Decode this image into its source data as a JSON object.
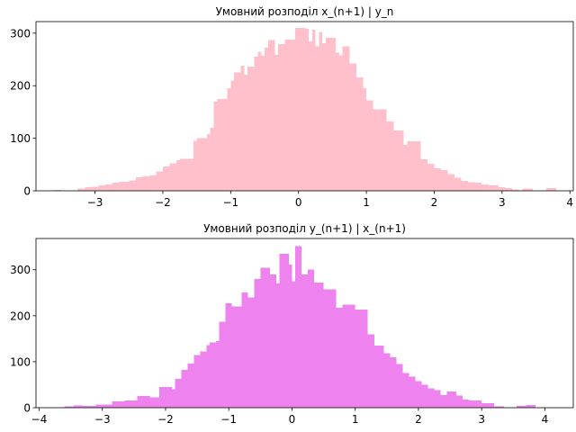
{
  "chart_data": [
    {
      "type": "bar",
      "title": "Умовний розподіл x_(n+1) | y_n",
      "color": "#ffc0cb",
      "xlim": [
        -3.87,
        4.05
      ],
      "ylim": [
        0,
        322
      ],
      "xticks": [
        -3,
        -2,
        -1,
        0,
        1,
        2,
        3,
        4
      ],
      "yticks": [
        0,
        100,
        200,
        300
      ],
      "bins": [
        {
          "x0": -3.6,
          "x1": -3.5,
          "count": 2
        },
        {
          "x0": -3.26,
          "x1": -3.15,
          "count": 4
        },
        {
          "x0": -3.15,
          "x1": -3.05,
          "count": 7
        },
        {
          "x0": -3.05,
          "x1": -2.95,
          "count": 8
        },
        {
          "x0": -2.95,
          "x1": -2.85,
          "count": 10
        },
        {
          "x0": -2.85,
          "x1": -2.75,
          "count": 12
        },
        {
          "x0": -2.75,
          "x1": -2.65,
          "count": 15
        },
        {
          "x0": -2.65,
          "x1": -2.5,
          "count": 17
        },
        {
          "x0": -2.5,
          "x1": -2.4,
          "count": 20
        },
        {
          "x0": -2.4,
          "x1": -2.3,
          "count": 26
        },
        {
          "x0": -2.3,
          "x1": -2.2,
          "count": 27
        },
        {
          "x0": -2.2,
          "x1": -2.1,
          "count": 29
        },
        {
          "x0": -2.1,
          "x1": -2.0,
          "count": 37
        },
        {
          "x0": -2.0,
          "x1": -1.9,
          "count": 46
        },
        {
          "x0": -1.9,
          "x1": -1.8,
          "count": 52
        },
        {
          "x0": -1.8,
          "x1": -1.75,
          "count": 58
        },
        {
          "x0": -1.75,
          "x1": -1.55,
          "count": 61
        },
        {
          "x0": -1.55,
          "x1": -1.5,
          "count": 95
        },
        {
          "x0": -1.5,
          "x1": -1.35,
          "count": 100
        },
        {
          "x0": -1.35,
          "x1": -1.3,
          "count": 108
        },
        {
          "x0": -1.3,
          "x1": -1.25,
          "count": 120
        },
        {
          "x0": -1.25,
          "x1": -1.2,
          "count": 170
        },
        {
          "x0": -1.2,
          "x1": -1.05,
          "count": 175
        },
        {
          "x0": -1.05,
          "x1": -1.0,
          "count": 195
        },
        {
          "x0": -1.0,
          "x1": -0.95,
          "count": 210
        },
        {
          "x0": -0.95,
          "x1": -0.85,
          "count": 225
        },
        {
          "x0": -0.85,
          "x1": -0.8,
          "count": 238
        },
        {
          "x0": -0.8,
          "x1": -0.75,
          "count": 221
        },
        {
          "x0": -0.75,
          "x1": -0.65,
          "count": 236
        },
        {
          "x0": -0.65,
          "x1": -0.6,
          "count": 255
        },
        {
          "x0": -0.6,
          "x1": -0.55,
          "count": 265
        },
        {
          "x0": -0.55,
          "x1": -0.5,
          "count": 257
        },
        {
          "x0": -0.5,
          "x1": -0.45,
          "count": 272
        },
        {
          "x0": -0.45,
          "x1": -0.35,
          "count": 287
        },
        {
          "x0": -0.35,
          "x1": -0.3,
          "count": 259
        },
        {
          "x0": -0.3,
          "x1": -0.2,
          "count": 279
        },
        {
          "x0": -0.2,
          "x1": -0.05,
          "count": 288
        },
        {
          "x0": -0.05,
          "x1": 0.1,
          "count": 310
        },
        {
          "x0": 0.1,
          "x1": 0.15,
          "count": 308
        },
        {
          "x0": 0.15,
          "x1": 0.2,
          "count": 284
        },
        {
          "x0": 0.2,
          "x1": 0.25,
          "count": 307
        },
        {
          "x0": 0.25,
          "x1": 0.3,
          "count": 275
        },
        {
          "x0": 0.3,
          "x1": 0.35,
          "count": 302
        },
        {
          "x0": 0.35,
          "x1": 0.4,
          "count": 281
        },
        {
          "x0": 0.4,
          "x1": 0.55,
          "count": 291
        },
        {
          "x0": 0.55,
          "x1": 0.6,
          "count": 263
        },
        {
          "x0": 0.6,
          "x1": 0.65,
          "count": 258
        },
        {
          "x0": 0.65,
          "x1": 0.75,
          "count": 275
        },
        {
          "x0": 0.75,
          "x1": 0.85,
          "count": 242
        },
        {
          "x0": 0.85,
          "x1": 0.95,
          "count": 216
        },
        {
          "x0": 0.95,
          "x1": 1.0,
          "count": 195
        },
        {
          "x0": 1.0,
          "x1": 1.1,
          "count": 172
        },
        {
          "x0": 1.1,
          "x1": 1.3,
          "count": 155
        },
        {
          "x0": 1.3,
          "x1": 1.4,
          "count": 132
        },
        {
          "x0": 1.4,
          "x1": 1.55,
          "count": 115
        },
        {
          "x0": 1.55,
          "x1": 1.6,
          "count": 87
        },
        {
          "x0": 1.6,
          "x1": 1.8,
          "count": 94
        },
        {
          "x0": 1.8,
          "x1": 1.9,
          "count": 60
        },
        {
          "x0": 1.9,
          "x1": 2.0,
          "count": 51
        },
        {
          "x0": 2.0,
          "x1": 2.1,
          "count": 43
        },
        {
          "x0": 2.1,
          "x1": 2.2,
          "count": 39
        },
        {
          "x0": 2.2,
          "x1": 2.3,
          "count": 32
        },
        {
          "x0": 2.3,
          "x1": 2.4,
          "count": 25
        },
        {
          "x0": 2.4,
          "x1": 2.5,
          "count": 19
        },
        {
          "x0": 2.5,
          "x1": 2.6,
          "count": 16
        },
        {
          "x0": 2.6,
          "x1": 2.7,
          "count": 15
        },
        {
          "x0": 2.7,
          "x1": 2.8,
          "count": 12
        },
        {
          "x0": 2.8,
          "x1": 2.95,
          "count": 10
        },
        {
          "x0": 2.95,
          "x1": 3.05,
          "count": 7
        },
        {
          "x0": 3.05,
          "x1": 3.15,
          "count": 5
        },
        {
          "x0": 3.15,
          "x1": 3.25,
          "count": 3
        },
        {
          "x0": 3.3,
          "x1": 3.45,
          "count": 4
        },
        {
          "x0": 3.65,
          "x1": 3.8,
          "count": 5
        }
      ]
    },
    {
      "type": "bar",
      "title": "Умовний розподіл y_(n+1) | x_(n+1)",
      "color": "#ee82ee",
      "xlim": [
        -4.05,
        4.45
      ],
      "ylim": [
        0,
        368
      ],
      "xticks": [
        -4,
        -3,
        -2,
        -1,
        0,
        1,
        2,
        3,
        4
      ],
      "yticks": [
        0,
        100,
        200,
        300
      ],
      "bins": [
        {
          "x0": -3.6,
          "x1": -3.45,
          "count": 3
        },
        {
          "x0": -3.45,
          "x1": -3.3,
          "count": 5
        },
        {
          "x0": -3.3,
          "x1": -3.1,
          "count": 4
        },
        {
          "x0": -3.1,
          "x1": -2.85,
          "count": 7
        },
        {
          "x0": -2.85,
          "x1": -2.65,
          "count": 14
        },
        {
          "x0": -2.65,
          "x1": -2.45,
          "count": 16
        },
        {
          "x0": -2.45,
          "x1": -2.25,
          "count": 25
        },
        {
          "x0": -2.25,
          "x1": -2.1,
          "count": 23
        },
        {
          "x0": -2.1,
          "x1": -1.9,
          "count": 45
        },
        {
          "x0": -1.9,
          "x1": -1.85,
          "count": 40
        },
        {
          "x0": -1.85,
          "x1": -1.75,
          "count": 63
        },
        {
          "x0": -1.75,
          "x1": -1.65,
          "count": 82
        },
        {
          "x0": -1.65,
          "x1": -1.55,
          "count": 96
        },
        {
          "x0": -1.55,
          "x1": -1.45,
          "count": 115
        },
        {
          "x0": -1.45,
          "x1": -1.35,
          "count": 122
        },
        {
          "x0": -1.35,
          "x1": -1.3,
          "count": 136
        },
        {
          "x0": -1.3,
          "x1": -1.2,
          "count": 142
        },
        {
          "x0": -1.2,
          "x1": -1.15,
          "count": 145
        },
        {
          "x0": -1.15,
          "x1": -1.05,
          "count": 187
        },
        {
          "x0": -1.05,
          "x1": -0.95,
          "count": 227
        },
        {
          "x0": -0.95,
          "x1": -0.8,
          "count": 220
        },
        {
          "x0": -0.8,
          "x1": -0.7,
          "count": 251
        },
        {
          "x0": -0.7,
          "x1": -0.6,
          "count": 240
        },
        {
          "x0": -0.6,
          "x1": -0.5,
          "count": 280
        },
        {
          "x0": -0.5,
          "x1": -0.35,
          "count": 304
        },
        {
          "x0": -0.35,
          "x1": -0.25,
          "count": 290
        },
        {
          "x0": -0.25,
          "x1": -0.2,
          "count": 270
        },
        {
          "x0": -0.2,
          "x1": -0.05,
          "count": 335
        },
        {
          "x0": -0.05,
          "x1": 0.0,
          "count": 311
        },
        {
          "x0": 0.0,
          "x1": 0.05,
          "count": 275
        },
        {
          "x0": 0.05,
          "x1": 0.15,
          "count": 351
        },
        {
          "x0": 0.15,
          "x1": 0.25,
          "count": 290
        },
        {
          "x0": 0.25,
          "x1": 0.35,
          "count": 300
        },
        {
          "x0": 0.35,
          "x1": 0.5,
          "count": 272
        },
        {
          "x0": 0.5,
          "x1": 0.7,
          "count": 257
        },
        {
          "x0": 0.7,
          "x1": 0.8,
          "count": 217
        },
        {
          "x0": 0.8,
          "x1": 1.0,
          "count": 224
        },
        {
          "x0": 1.0,
          "x1": 1.2,
          "count": 213
        },
        {
          "x0": 1.2,
          "x1": 1.3,
          "count": 160
        },
        {
          "x0": 1.3,
          "x1": 1.45,
          "count": 135
        },
        {
          "x0": 1.45,
          "x1": 1.55,
          "count": 118
        },
        {
          "x0": 1.55,
          "x1": 1.65,
          "count": 110
        },
        {
          "x0": 1.65,
          "x1": 1.75,
          "count": 95
        },
        {
          "x0": 1.75,
          "x1": 1.85,
          "count": 75
        },
        {
          "x0": 1.85,
          "x1": 1.95,
          "count": 68
        },
        {
          "x0": 1.95,
          "x1": 2.05,
          "count": 58
        },
        {
          "x0": 2.05,
          "x1": 2.15,
          "count": 50
        },
        {
          "x0": 2.15,
          "x1": 2.25,
          "count": 42
        },
        {
          "x0": 2.25,
          "x1": 2.35,
          "count": 38
        },
        {
          "x0": 2.35,
          "x1": 2.45,
          "count": 27
        },
        {
          "x0": 2.45,
          "x1": 2.6,
          "count": 35
        },
        {
          "x0": 2.6,
          "x1": 2.7,
          "count": 26
        },
        {
          "x0": 2.7,
          "x1": 2.8,
          "count": 18
        },
        {
          "x0": 2.8,
          "x1": 3.0,
          "count": 16
        },
        {
          "x0": 3.0,
          "x1": 3.2,
          "count": 10
        },
        {
          "x0": 3.2,
          "x1": 3.35,
          "count": 3
        },
        {
          "x0": 3.55,
          "x1": 3.7,
          "count": 4
        },
        {
          "x0": 3.7,
          "x1": 3.85,
          "count": 6
        }
      ]
    }
  ]
}
